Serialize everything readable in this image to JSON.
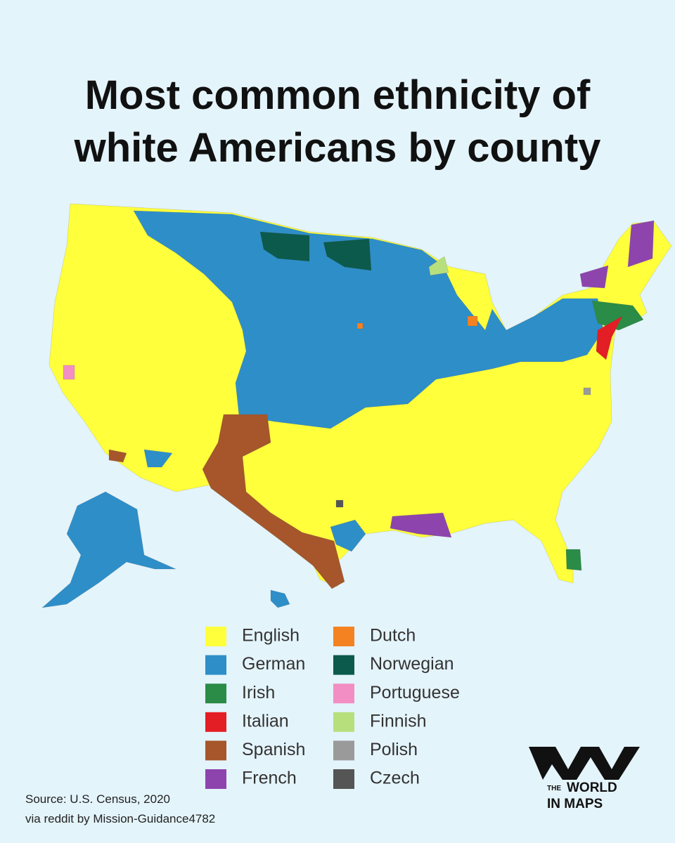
{
  "title": [
    "Most common ethnicity of",
    "white Americans by county"
  ],
  "legend": [
    {
      "label": "English",
      "color": "#ffff3c"
    },
    {
      "label": "German",
      "color": "#2e8ec8"
    },
    {
      "label": "Irish",
      "color": "#2a8c46"
    },
    {
      "label": "Italian",
      "color": "#e31e24"
    },
    {
      "label": "Spanish",
      "color": "#a6562a"
    },
    {
      "label": "French",
      "color": "#8e44ad"
    },
    {
      "label": "Dutch",
      "color": "#f58220"
    },
    {
      "label": "Norwegian",
      "color": "#0b5a4c"
    },
    {
      "label": "Portuguese",
      "color": "#f28ec3"
    },
    {
      "label": "Finnish",
      "color": "#b7e07c"
    },
    {
      "label": "Polish",
      "color": "#9a9a9a"
    },
    {
      "label": "Czech",
      "color": "#555555"
    }
  ],
  "source": [
    "Source: U.S. Census, 2020",
    "via reddit by Mission-Guidance4782"
  ],
  "logo": {
    "prefix": "THE",
    "lines": [
      "WORLD",
      "IN MAPS"
    ]
  }
}
